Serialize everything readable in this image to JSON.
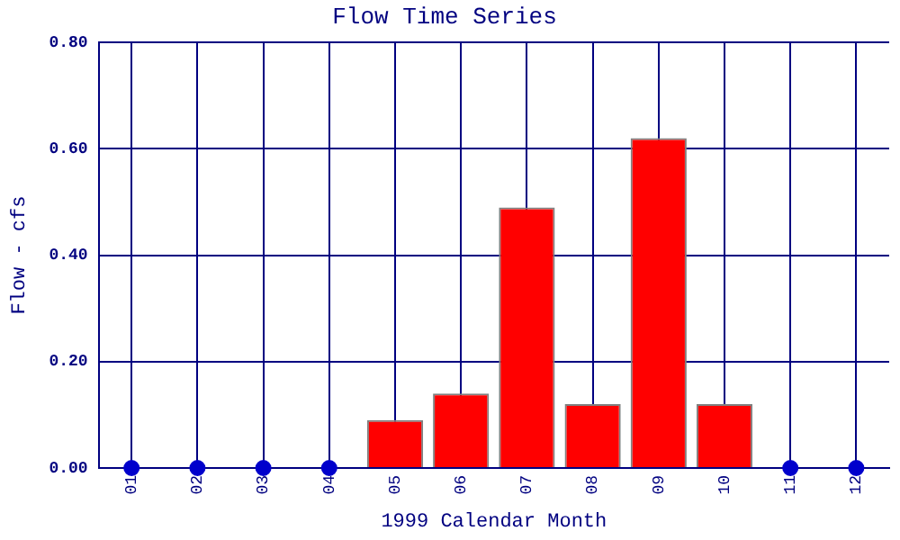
{
  "chart_data": {
    "type": "bar",
    "title": "Flow Time Series",
    "xlabel": "1999 Calendar Month",
    "ylabel": "Flow - cfs",
    "categories": [
      "01",
      "02",
      "03",
      "04",
      "05",
      "06",
      "07",
      "08",
      "09",
      "10",
      "11",
      "12"
    ],
    "series": [
      {
        "color": "#ff0000",
        "values": [
          null,
          null,
          null,
          null,
          0.09,
          0.14,
          0.49,
          0.12,
          0.62,
          0.12,
          null,
          null
        ]
      },
      {
        "type": "scatter",
        "color": "#0000cc",
        "x": [
          "01",
          "02",
          "03",
          "04",
          "11",
          "12"
        ],
        "values": [
          0,
          0,
          0,
          0,
          0,
          0
        ]
      }
    ],
    "ylim": [
      0,
      0.8
    ],
    "yticks": [
      {
        "value": 0,
        "label": "0.00"
      },
      {
        "value": 0.2,
        "label": "0.20"
      },
      {
        "value": 0.4,
        "label": "0.40"
      },
      {
        "value": 0.6,
        "label": "0.60"
      },
      {
        "value": 0.8,
        "label": "0.80"
      }
    ],
    "grid": true,
    "legend": false,
    "marker": "circle"
  }
}
